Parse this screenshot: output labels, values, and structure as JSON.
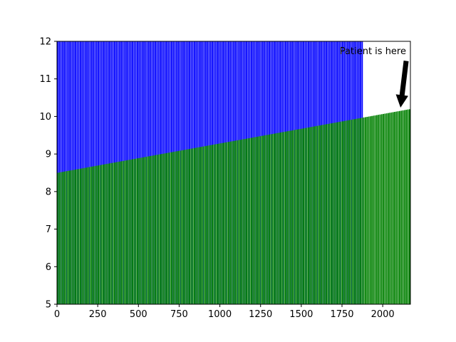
{
  "chart_data": {
    "type": "bar",
    "title": "",
    "xlabel": "",
    "ylabel": "",
    "xlim": [
      0,
      2170
    ],
    "ylim": [
      5,
      12
    ],
    "grid": false,
    "x_ticks": [
      0,
      250,
      500,
      750,
      1000,
      1250,
      1500,
      1750,
      2000
    ],
    "y_ticks": [
      5,
      6,
      7,
      8,
      9,
      10,
      11,
      12
    ],
    "bar_step": 10,
    "bar_width": 8,
    "series": [
      {
        "color": "#0000ff",
        "x_start": 0,
        "x_end": 1880,
        "y_value": 12
      },
      {
        "color": "#008000",
        "x_start": 0,
        "x_end": 2170,
        "y_start": 8.5,
        "y_end": 10.2
      }
    ],
    "annotations": [
      {
        "text": "Patient is here",
        "point_x": 2110,
        "point_y": 10.2
      }
    ]
  }
}
